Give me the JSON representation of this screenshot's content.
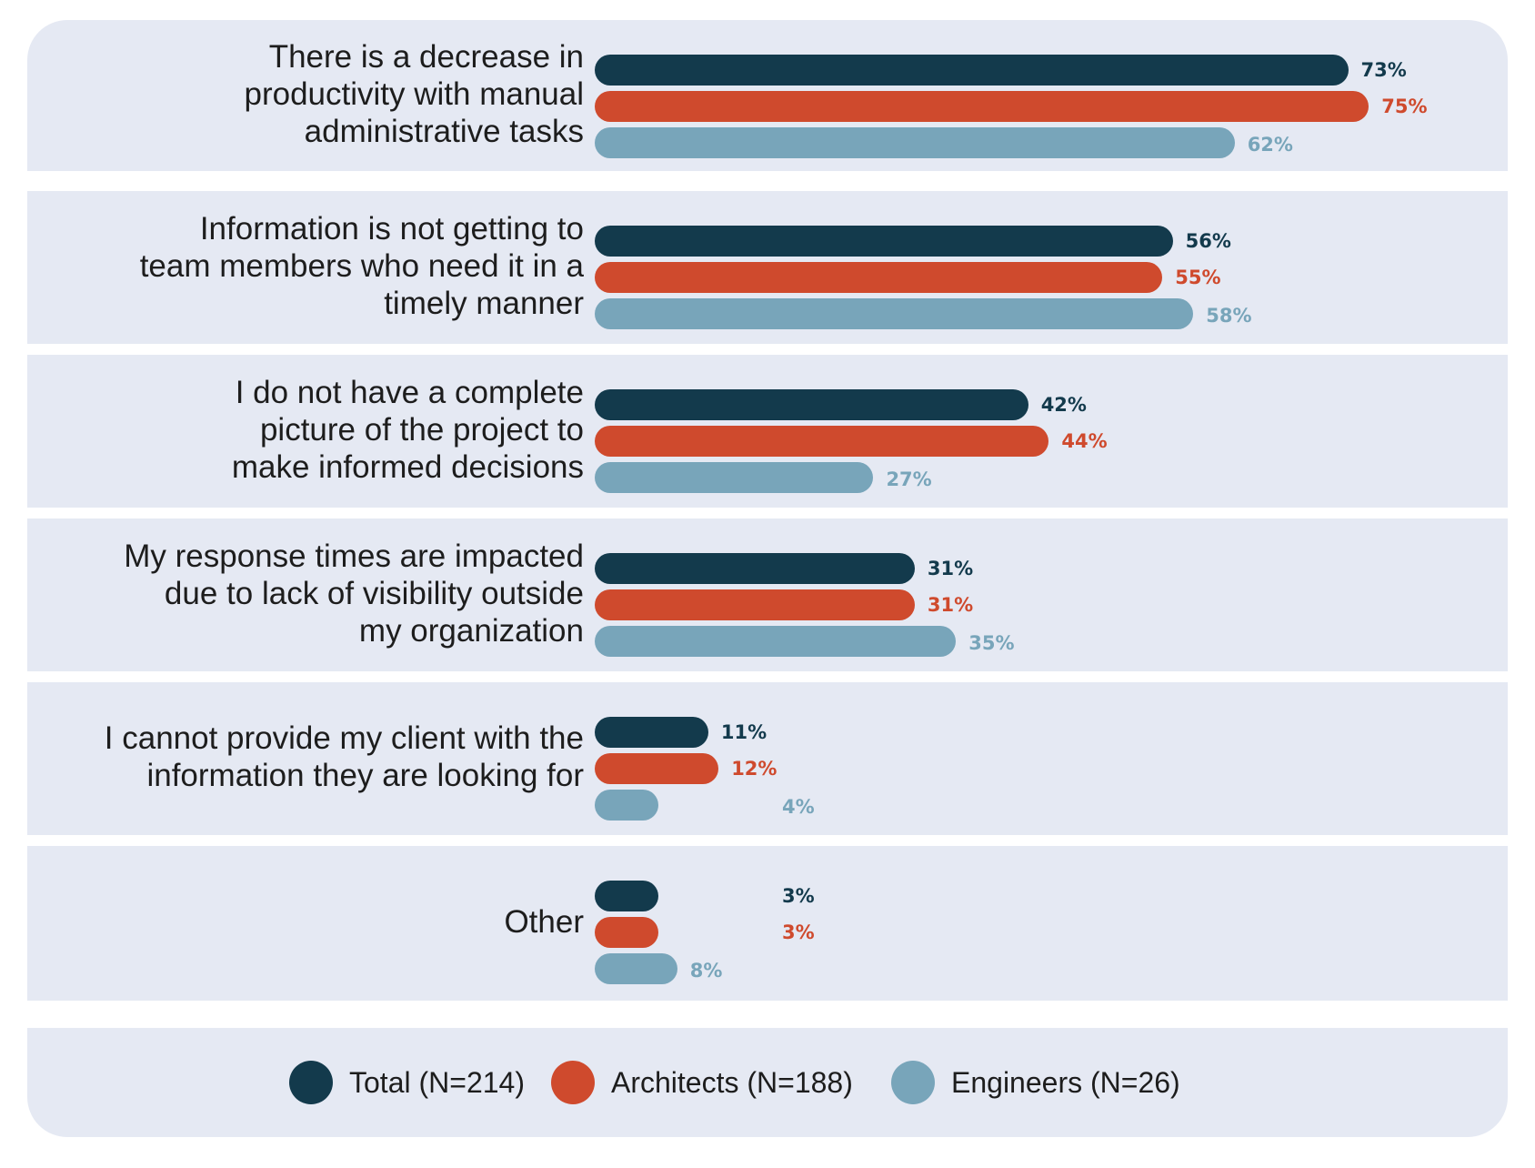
{
  "chart_data": {
    "type": "bar",
    "orientation": "horizontal",
    "title": "",
    "xlabel": "",
    "ylabel": "",
    "value_suffix": "%",
    "xlim": [
      0,
      100
    ],
    "grid": false,
    "legend_position": "bottom",
    "categories": [
      "There is a decrease in productivity with manual administrative tasks",
      "Information is not getting to team members who need it in a timely manner",
      "I do not have a complete picture of the project to make informed decisions",
      "My response times are impacted due to lack of visibility outside my organization",
      "I cannot provide my client with the information they are looking for",
      "Other"
    ],
    "category_lines": [
      [
        "There is a decrease in",
        "productivity with manual",
        "administrative tasks"
      ],
      [
        "Information is not getting to",
        "team members who need it in a",
        "timely manner"
      ],
      [
        "I do not have a complete",
        "picture of the project to",
        "make informed decisions"
      ],
      [
        "My response times are impacted",
        "due to lack of visibility outside",
        "my organization"
      ],
      [
        "I cannot provide my client with the",
        "information they are looking for"
      ],
      [
        "Other"
      ]
    ],
    "series": [
      {
        "name": "Total (N=214)",
        "color": "#133a4c",
        "label_color": "#133a4c",
        "values": [
          73,
          56,
          42,
          31,
          11,
          3
        ]
      },
      {
        "name": "Architects (N=188)",
        "color": "#cf4a2d",
        "label_color": "#cf4a2d",
        "values": [
          75,
          55,
          44,
          31,
          12,
          3
        ]
      },
      {
        "name": "Engineers (N=26)",
        "color": "#78a5ba",
        "label_color": "#78a5ba",
        "values": [
          62,
          58,
          27,
          35,
          4,
          8
        ]
      }
    ]
  },
  "colors": {
    "band_background": "#e5e9f3",
    "divider": "#ffffff",
    "text": "#1d1d1d"
  }
}
